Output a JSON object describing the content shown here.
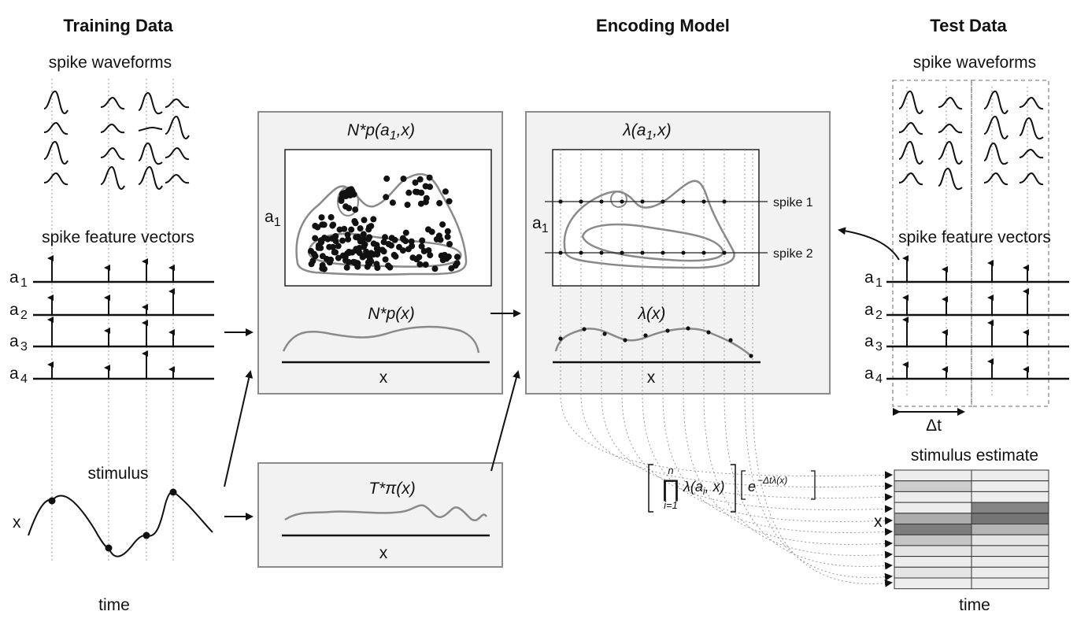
{
  "headers": {
    "training": "Training Data",
    "encoding": "Encoding Model",
    "test": "Test Data"
  },
  "training": {
    "waveforms_label": "spike waveforms",
    "features_label": "spike feature vectors",
    "feature_rows": [
      "a",
      "a",
      "a",
      "a"
    ],
    "feature_subs": [
      "1",
      "2",
      "3",
      "4"
    ],
    "stimulus_label": "stimulus",
    "stimulus_axis": "x",
    "time_label": "time"
  },
  "middle": {
    "joint_title": "N*p(a",
    "joint_title_sub": "1",
    "joint_title_end": ",x)",
    "joint_ylabel": "a",
    "joint_ylabel_sub": "1",
    "marginal_title": "N*p(x)",
    "marginal_xlabel": "x",
    "occupancy_title": "T*π(x)",
    "occupancy_xlabel": "x"
  },
  "encoding": {
    "rate_title": "λ(a",
    "rate_title_sub": "1",
    "rate_title_end": ",x)",
    "rate_ylabel": "a",
    "rate_ylabel_sub": "1",
    "spike1_label": "spike 1",
    "spike2_label": "spike 2",
    "marginal_title": "λ(x)",
    "marginal_xlabel": "x"
  },
  "test": {
    "waveforms_label": "spike waveforms",
    "features_label": "spike feature vectors",
    "feature_rows": [
      "a",
      "a",
      "a",
      "a"
    ],
    "feature_subs": [
      "1",
      "2",
      "3",
      "4"
    ],
    "delta_label": "Δt",
    "estimate_label": "stimulus estimate",
    "estimate_axis": "x",
    "time_label": "time"
  },
  "formula": {
    "product_upper": "n",
    "product_lower": "i=1",
    "term": "λ(a",
    "term_sub": "i",
    "term_end": ", x)",
    "exp_base": "e",
    "exp_power": "−Δtλ(x)"
  },
  "estimate_grid": {
    "rows": 11,
    "cols": 2,
    "shades": [
      [
        0.05,
        0.05
      ],
      [
        0.25,
        0.05
      ],
      [
        0.05,
        0.05
      ],
      [
        0.05,
        0.7
      ],
      [
        0.45,
        0.8
      ],
      [
        0.75,
        0.4
      ],
      [
        0.3,
        0.1
      ],
      [
        0.1,
        0.1
      ],
      [
        0.05,
        0.05
      ],
      [
        0.1,
        0.05
      ],
      [
        0.05,
        0.05
      ]
    ]
  },
  "colors": {
    "panel_fill": "#f2f2f2",
    "panel_stroke": "#8c8c8c",
    "curve": "#8a8a8a",
    "ink": "#111111"
  }
}
